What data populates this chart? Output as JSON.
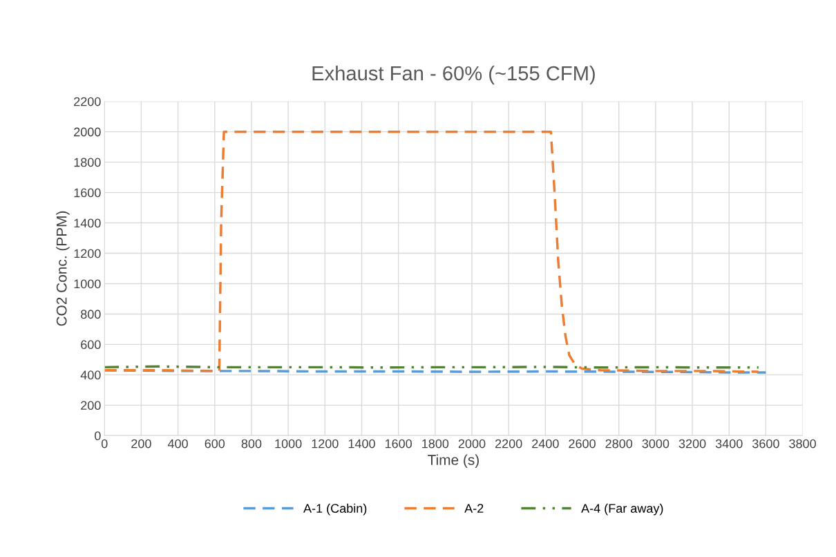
{
  "chart_data": {
    "type": "line",
    "title": "Exhaust Fan - 60% (~155 CFM)",
    "xlabel": "Time (s)",
    "ylabel": "CO2 Conc. (PPM)",
    "xlim": [
      0,
      3800
    ],
    "xticks": [
      0,
      200,
      400,
      600,
      800,
      1000,
      1200,
      1400,
      1600,
      1800,
      2000,
      2200,
      2400,
      2600,
      2800,
      3000,
      3200,
      3400,
      3600,
      3800
    ],
    "ylim": [
      0,
      2200
    ],
    "yticks": [
      0,
      200,
      400,
      600,
      800,
      1000,
      1200,
      1400,
      1600,
      1800,
      2000,
      2200
    ],
    "grid": true,
    "legend": "bottom",
    "series": [
      {
        "name": "A-1 (Cabin)",
        "color": "#5b9bd5",
        "line_style": "dashed",
        "x": [
          0,
          400,
          800,
          1200,
          1600,
          2000,
          2400,
          2800,
          3200,
          3400,
          3600
        ],
        "values": [
          430,
          425,
          425,
          422,
          422,
          420,
          422,
          420,
          418,
          415,
          415
        ]
      },
      {
        "name": "A-2",
        "color": "#ed7d31",
        "line_style": "dashed",
        "x": [
          0,
          300,
          600,
          625,
          635,
          650,
          1000,
          1500,
          2000,
          2430,
          2450,
          2470,
          2490,
          2510,
          2530,
          2560,
          2600,
          2700,
          3000,
          3300,
          3560
        ],
        "values": [
          430,
          430,
          425,
          425,
          1400,
          2000,
          2000,
          2000,
          2000,
          2000,
          1600,
          1150,
          850,
          650,
          530,
          470,
          440,
          430,
          425,
          425,
          420
        ]
      },
      {
        "name": "A-4 (Far away)",
        "color": "#548235",
        "line_style": "dotted",
        "x": [
          0,
          300,
          600,
          900,
          1200,
          1500,
          1800,
          2100,
          2400,
          2700,
          3000,
          3300,
          3560
        ],
        "values": [
          450,
          455,
          450,
          450,
          450,
          448,
          450,
          450,
          452,
          448,
          450,
          448,
          448
        ]
      }
    ]
  }
}
